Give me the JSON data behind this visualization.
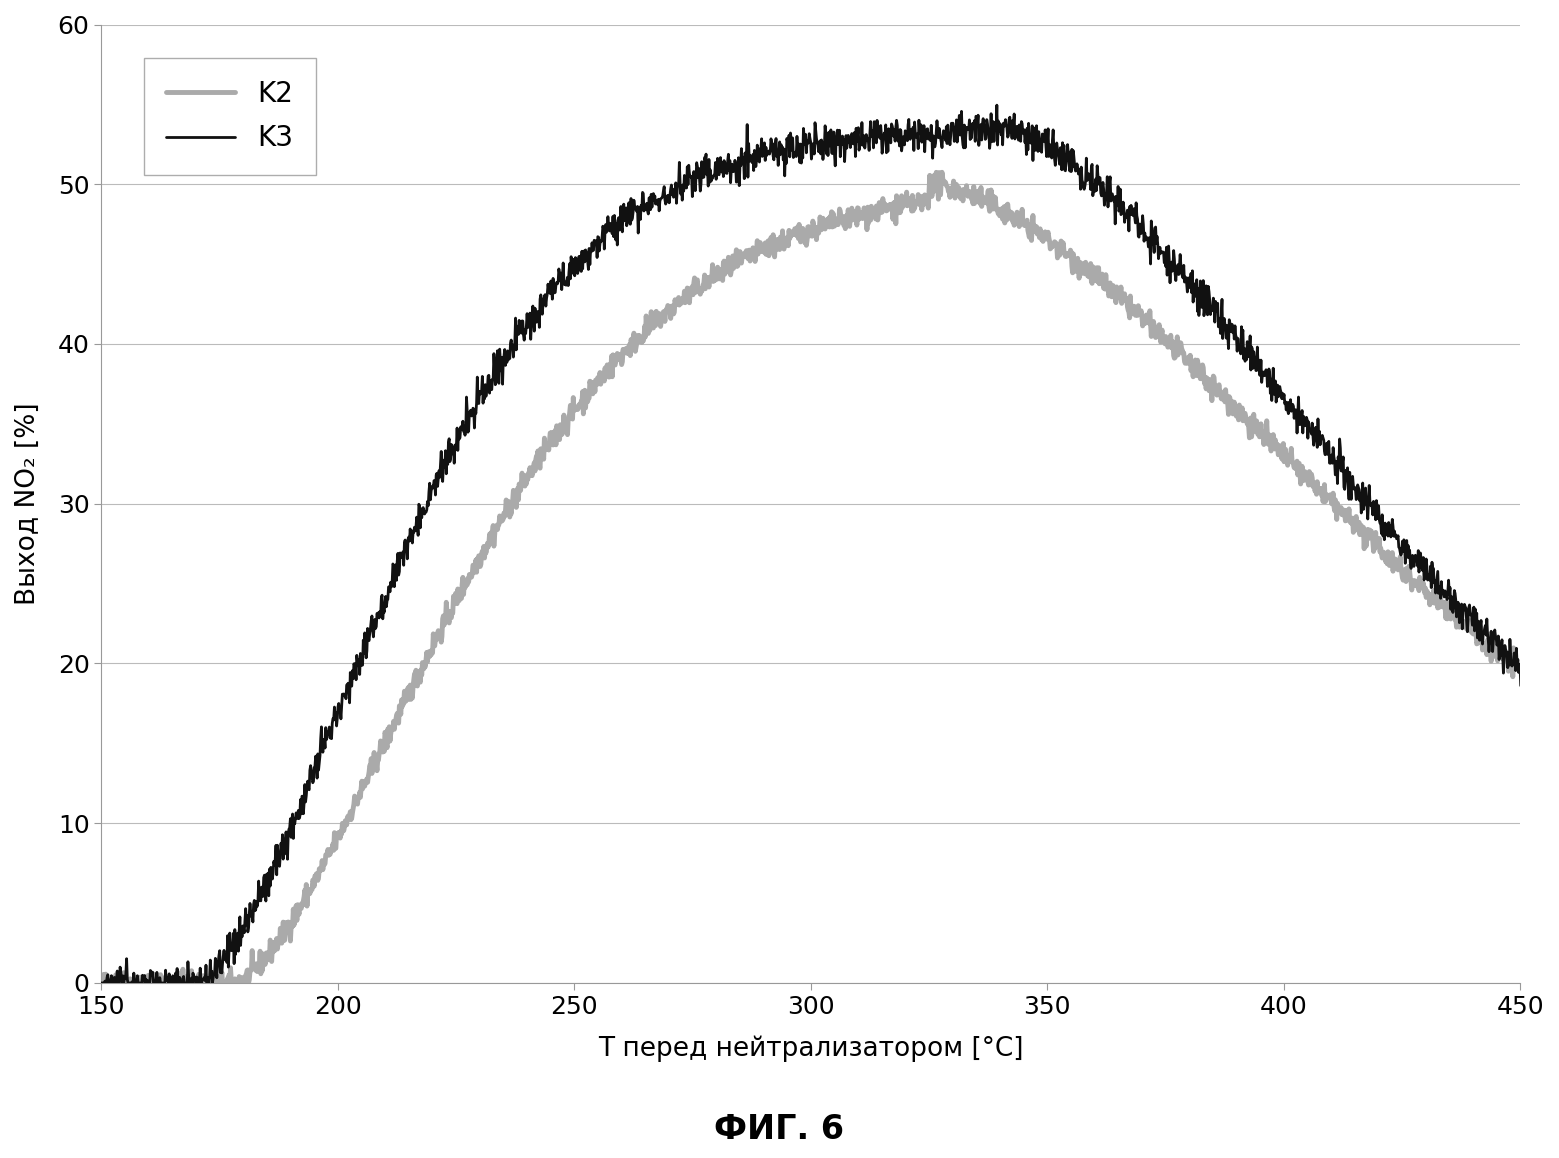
{
  "title": "ФИГ. 6",
  "xlabel": "Т перед нейтрализатором [°C]",
  "ylabel": "Выход NO₂ [%]",
  "xlim": [
    150,
    450
  ],
  "ylim": [
    0,
    60
  ],
  "xticks": [
    150,
    200,
    250,
    300,
    350,
    400,
    450
  ],
  "yticks": [
    0,
    10,
    20,
    30,
    40,
    50,
    60
  ],
  "legend_labels": [
    "K2",
    "K3"
  ],
  "k2_color": "#aaaaaa",
  "k3_color": "#111111",
  "background_color": "#ffffff",
  "grid_color": "#bbbbbb",
  "k2_peak": 50.0,
  "k2_peak_temp": 325,
  "k2_rise_start": 178,
  "k2_rise_scale": 62,
  "k2_rise_exp": 1.55,
  "k2_fall_scale": 130,
  "k2_fall_exp": 1.6,
  "k3_peak": 53.5,
  "k3_peak_temp": 340,
  "k3_rise_start": 170,
  "k3_rise_scale": 55,
  "k3_rise_exp": 1.6,
  "k3_fall_scale": 110,
  "k3_fall_exp": 1.6,
  "noise_seed": 42,
  "noise_k2_std": 0.35,
  "noise_k3_std": 0.55,
  "n_points": 2000
}
